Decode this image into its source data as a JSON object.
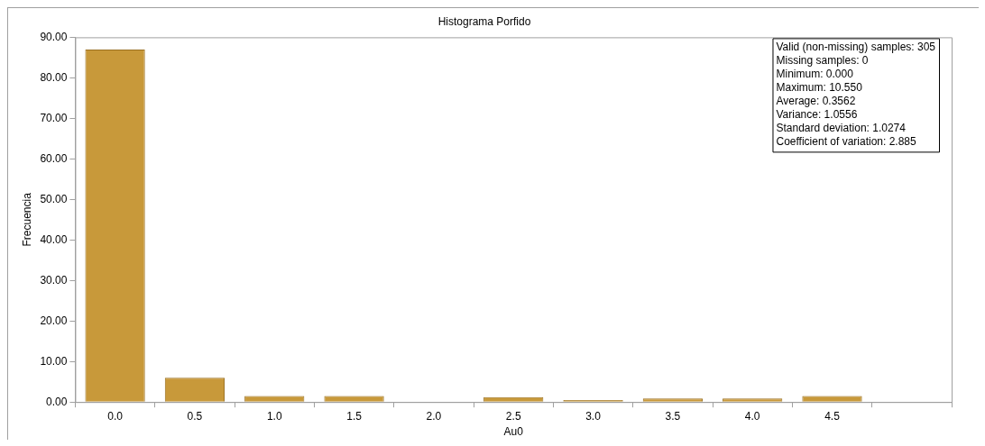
{
  "chart_data": {
    "type": "bar",
    "title": "Histograma Porfido",
    "xlabel": "Au0",
    "ylabel": "Frecuencia",
    "categories": [
      "0.0",
      "0.5",
      "1.0",
      "1.5",
      "2.0",
      "2.5",
      "3.0",
      "3.5",
      "4.0",
      "4.5",
      null
    ],
    "values": [
      87,
      6,
      1.5,
      1.5,
      0,
      1.2,
      0.5,
      0.9,
      0.9,
      1.5,
      null
    ],
    "color": "#c8993a",
    "ylim": [
      0,
      90
    ],
    "yticks": [
      {
        "value": 0,
        "label": "0.00"
      },
      {
        "value": 10,
        "label": "10.00"
      },
      {
        "value": 20,
        "label": "20.00"
      },
      {
        "value": 30,
        "label": "30.00"
      },
      {
        "value": 40,
        "label": "40.00"
      },
      {
        "value": 50,
        "label": "50.00"
      },
      {
        "value": 60,
        "label": "60.00"
      },
      {
        "value": 70,
        "label": "70.00"
      },
      {
        "value": 80,
        "label": "80.00"
      },
      {
        "value": 90,
        "label": "90.00"
      }
    ],
    "grid": false,
    "legend": false,
    "annotations": [
      "Valid (non-missing) samples: 305",
      "Missing samples: 0",
      "Minimum: 0.000",
      "Maximum: 10.550",
      "Average: 0.3562",
      "Variance: 1.0556",
      "Standard deviation: 1.0274",
      "Coefficient of variation: 2.885"
    ]
  }
}
